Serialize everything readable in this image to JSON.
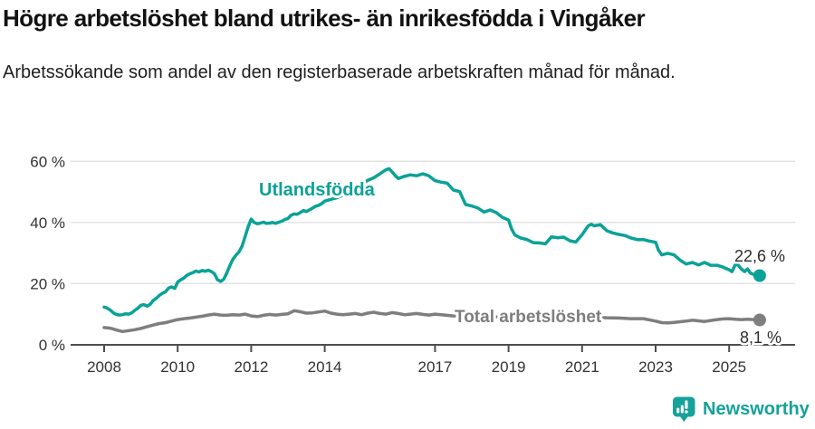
{
  "header": {
    "title": "Högre arbetslöshet bland utrikes- än inrikesfödda i Vingåker",
    "subtitle": "Arbetssökande som andel av den registerbaserade arbetskraften månad för månad."
  },
  "footer": {
    "brand": "Newsworthy"
  },
  "colors": {
    "accent_teal": "#0aa297",
    "line_gray": "#7e7e7e",
    "gridline": "#e3e3e3",
    "axis": "#4d4d4d",
    "text_dark": "#121212"
  },
  "chart_data": {
    "type": "line",
    "title": "Högre arbetslöshet bland utrikes- än inrikesfödda i Vingåker",
    "subtitle": "Arbetssökande som andel av den registerbaserade arbetskraften månad för månad.",
    "xlabel": "",
    "ylabel": "",
    "xlim": [
      2007.1,
      2026.8
    ],
    "ylim": [
      0,
      62
    ],
    "grid": "horizontal",
    "legend_position": "inline-labels",
    "x_ticks": [
      2008,
      2010,
      2012,
      2014,
      2017,
      2019,
      2021,
      2023,
      2025
    ],
    "y_ticks": [
      {
        "value": 60,
        "label": "60 %"
      },
      {
        "value": 40,
        "label": "40 %"
      },
      {
        "value": 20,
        "label": "20 %"
      },
      {
        "value": 0,
        "label": "0 %"
      }
    ],
    "series": [
      {
        "id": "utlandsfodda",
        "name": "Utlandsfödda",
        "color": "#0aa297",
        "end_label": "22,6 %",
        "end_value": 22.6,
        "points": [
          [
            2008.0,
            12.3
          ],
          [
            2008.08,
            12.0
          ],
          [
            2008.17,
            11.3
          ],
          [
            2008.25,
            10.4
          ],
          [
            2008.33,
            9.9
          ],
          [
            2008.42,
            9.7
          ],
          [
            2008.5,
            9.8
          ],
          [
            2008.58,
            10.1
          ],
          [
            2008.67,
            10.0
          ],
          [
            2008.75,
            10.4
          ],
          [
            2008.83,
            11.2
          ],
          [
            2008.92,
            12.0
          ],
          [
            2009.0,
            12.9
          ],
          [
            2009.08,
            13.1
          ],
          [
            2009.17,
            12.6
          ],
          [
            2009.25,
            13.2
          ],
          [
            2009.33,
            14.4
          ],
          [
            2009.42,
            15.2
          ],
          [
            2009.5,
            16.1
          ],
          [
            2009.58,
            16.8
          ],
          [
            2009.67,
            17.3
          ],
          [
            2009.75,
            18.5
          ],
          [
            2009.83,
            18.9
          ],
          [
            2009.92,
            18.4
          ],
          [
            2010.0,
            20.5
          ],
          [
            2010.08,
            21.2
          ],
          [
            2010.17,
            21.8
          ],
          [
            2010.25,
            22.7
          ],
          [
            2010.33,
            23.2
          ],
          [
            2010.42,
            23.6
          ],
          [
            2010.5,
            24.1
          ],
          [
            2010.58,
            23.8
          ],
          [
            2010.67,
            24.3
          ],
          [
            2010.75,
            24.0
          ],
          [
            2010.83,
            24.4
          ],
          [
            2010.92,
            23.9
          ],
          [
            2011.0,
            23.2
          ],
          [
            2011.08,
            21.3
          ],
          [
            2011.17,
            20.7
          ],
          [
            2011.25,
            21.4
          ],
          [
            2011.33,
            23.3
          ],
          [
            2011.42,
            25.9
          ],
          [
            2011.5,
            27.9
          ],
          [
            2011.58,
            29.2
          ],
          [
            2011.67,
            30.4
          ],
          [
            2011.75,
            32.2
          ],
          [
            2011.83,
            35.2
          ],
          [
            2011.92,
            38.7
          ],
          [
            2012.0,
            41.1
          ],
          [
            2012.08,
            40.0
          ],
          [
            2012.17,
            39.6
          ],
          [
            2012.25,
            39.8
          ],
          [
            2012.33,
            40.1
          ],
          [
            2012.42,
            39.7
          ],
          [
            2012.5,
            39.8
          ],
          [
            2012.58,
            40.0
          ],
          [
            2012.67,
            39.7
          ],
          [
            2012.75,
            40.1
          ],
          [
            2012.83,
            40.4
          ],
          [
            2012.92,
            41.0
          ],
          [
            2013.0,
            41.3
          ],
          [
            2013.08,
            42.3
          ],
          [
            2013.17,
            42.8
          ],
          [
            2013.25,
            42.7
          ],
          [
            2013.33,
            43.2
          ],
          [
            2013.42,
            43.9
          ],
          [
            2013.5,
            43.6
          ],
          [
            2013.58,
            44.1
          ],
          [
            2013.67,
            44.7
          ],
          [
            2013.75,
            45.3
          ],
          [
            2013.83,
            45.6
          ],
          [
            2013.92,
            46.2
          ],
          [
            2014.0,
            47.0
          ],
          [
            2014.17,
            47.6
          ],
          [
            2014.33,
            48.1
          ],
          [
            2014.5,
            48.9
          ],
          [
            2014.67,
            49.8
          ],
          [
            2014.83,
            50.9
          ],
          [
            2015.0,
            52.4
          ],
          [
            2015.17,
            53.8
          ],
          [
            2015.33,
            54.6
          ],
          [
            2015.5,
            55.9
          ],
          [
            2015.67,
            57.3
          ],
          [
            2015.75,
            57.6
          ],
          [
            2015.83,
            56.6
          ],
          [
            2015.92,
            55.3
          ],
          [
            2016.0,
            54.4
          ],
          [
            2016.17,
            55.1
          ],
          [
            2016.33,
            55.6
          ],
          [
            2016.5,
            55.3
          ],
          [
            2016.67,
            55.9
          ],
          [
            2016.83,
            55.3
          ],
          [
            2017.0,
            53.7
          ],
          [
            2017.17,
            53.2
          ],
          [
            2017.33,
            52.9
          ],
          [
            2017.5,
            50.6
          ],
          [
            2017.67,
            50.1
          ],
          [
            2017.83,
            45.9
          ],
          [
            2018.0,
            45.4
          ],
          [
            2018.17,
            44.7
          ],
          [
            2018.33,
            43.4
          ],
          [
            2018.5,
            44.1
          ],
          [
            2018.67,
            43.2
          ],
          [
            2018.83,
            41.7
          ],
          [
            2019.0,
            40.8
          ],
          [
            2019.08,
            38.0
          ],
          [
            2019.17,
            35.9
          ],
          [
            2019.33,
            34.9
          ],
          [
            2019.5,
            34.4
          ],
          [
            2019.67,
            33.4
          ],
          [
            2019.83,
            33.3
          ],
          [
            2020.0,
            33.0
          ],
          [
            2020.17,
            35.3
          ],
          [
            2020.33,
            35.0
          ],
          [
            2020.5,
            35.2
          ],
          [
            2020.67,
            34.0
          ],
          [
            2020.83,
            33.6
          ],
          [
            2021.0,
            36.0
          ],
          [
            2021.08,
            37.4
          ],
          [
            2021.17,
            38.9
          ],
          [
            2021.25,
            39.4
          ],
          [
            2021.33,
            38.9
          ],
          [
            2021.5,
            39.3
          ],
          [
            2021.67,
            37.3
          ],
          [
            2021.83,
            36.6
          ],
          [
            2022.0,
            36.1
          ],
          [
            2022.17,
            35.7
          ],
          [
            2022.33,
            34.9
          ],
          [
            2022.5,
            34.4
          ],
          [
            2022.67,
            34.4
          ],
          [
            2022.83,
            33.9
          ],
          [
            2023.0,
            33.5
          ],
          [
            2023.08,
            30.9
          ],
          [
            2023.17,
            29.4
          ],
          [
            2023.33,
            29.9
          ],
          [
            2023.5,
            29.4
          ],
          [
            2023.67,
            27.6
          ],
          [
            2023.83,
            26.4
          ],
          [
            2024.0,
            26.9
          ],
          [
            2024.17,
            26.1
          ],
          [
            2024.33,
            26.9
          ],
          [
            2024.5,
            26.0
          ],
          [
            2024.67,
            26.0
          ],
          [
            2024.83,
            25.4
          ],
          [
            2025.0,
            24.5
          ],
          [
            2025.08,
            23.9
          ],
          [
            2025.17,
            26.3
          ],
          [
            2025.25,
            26.0
          ],
          [
            2025.33,
            24.8
          ],
          [
            2025.42,
            23.9
          ],
          [
            2025.5,
            24.8
          ],
          [
            2025.58,
            23.4
          ],
          [
            2025.67,
            23.0
          ],
          [
            2025.75,
            22.9
          ],
          [
            2025.83,
            22.6
          ]
        ]
      },
      {
        "id": "total",
        "name": "Total arbetslöshet",
        "color": "#7e7e7e",
        "end_label": "8,1 %",
        "end_value": 8.1,
        "points": [
          [
            2008.0,
            5.6
          ],
          [
            2008.17,
            5.4
          ],
          [
            2008.33,
            4.8
          ],
          [
            2008.5,
            4.3
          ],
          [
            2008.67,
            4.6
          ],
          [
            2008.83,
            4.9
          ],
          [
            2009.0,
            5.3
          ],
          [
            2009.17,
            5.9
          ],
          [
            2009.33,
            6.4
          ],
          [
            2009.5,
            6.9
          ],
          [
            2009.67,
            7.2
          ],
          [
            2009.83,
            7.7
          ],
          [
            2010.0,
            8.2
          ],
          [
            2010.17,
            8.5
          ],
          [
            2010.33,
            8.7
          ],
          [
            2010.5,
            9.0
          ],
          [
            2010.67,
            9.3
          ],
          [
            2010.83,
            9.7
          ],
          [
            2011.0,
            10.0
          ],
          [
            2011.17,
            9.7
          ],
          [
            2011.33,
            9.6
          ],
          [
            2011.5,
            9.8
          ],
          [
            2011.67,
            9.7
          ],
          [
            2011.83,
            10.0
          ],
          [
            2012.0,
            9.4
          ],
          [
            2012.17,
            9.2
          ],
          [
            2012.33,
            9.6
          ],
          [
            2012.5,
            9.9
          ],
          [
            2012.67,
            9.7
          ],
          [
            2012.83,
            9.9
          ],
          [
            2013.0,
            10.1
          ],
          [
            2013.17,
            11.1
          ],
          [
            2013.33,
            10.8
          ],
          [
            2013.5,
            10.3
          ],
          [
            2013.67,
            10.4
          ],
          [
            2013.83,
            10.7
          ],
          [
            2014.0,
            11.0
          ],
          [
            2014.17,
            10.3
          ],
          [
            2014.33,
            10.0
          ],
          [
            2014.5,
            9.8
          ],
          [
            2014.67,
            10.0
          ],
          [
            2014.83,
            10.2
          ],
          [
            2015.0,
            9.8
          ],
          [
            2015.17,
            10.3
          ],
          [
            2015.33,
            10.6
          ],
          [
            2015.5,
            10.2
          ],
          [
            2015.67,
            10.0
          ],
          [
            2015.83,
            10.5
          ],
          [
            2016.0,
            10.2
          ],
          [
            2016.17,
            9.8
          ],
          [
            2016.33,
            10.0
          ],
          [
            2016.5,
            10.2
          ],
          [
            2016.67,
            9.9
          ],
          [
            2016.83,
            9.7
          ],
          [
            2017.0,
            10.0
          ],
          [
            2017.17,
            9.8
          ],
          [
            2017.33,
            9.6
          ],
          [
            2017.5,
            9.4
          ],
          [
            2017.67,
            9.5
          ],
          [
            2017.83,
            9.7
          ],
          [
            2018.0,
            9.5
          ],
          [
            2018.33,
            9.3
          ],
          [
            2018.67,
            9.1
          ],
          [
            2019.0,
            8.9
          ],
          [
            2019.33,
            8.7
          ],
          [
            2019.67,
            8.8
          ],
          [
            2020.0,
            9.0
          ],
          [
            2020.33,
            9.6
          ],
          [
            2020.67,
            9.5
          ],
          [
            2021.0,
            9.3
          ],
          [
            2021.33,
            9.0
          ],
          [
            2021.67,
            8.8
          ],
          [
            2022.0,
            8.7
          ],
          [
            2022.33,
            8.5
          ],
          [
            2022.67,
            8.5
          ],
          [
            2023.0,
            7.7
          ],
          [
            2023.17,
            7.2
          ],
          [
            2023.33,
            7.1
          ],
          [
            2023.5,
            7.3
          ],
          [
            2023.67,
            7.5
          ],
          [
            2023.83,
            7.7
          ],
          [
            2024.0,
            8.0
          ],
          [
            2024.17,
            7.8
          ],
          [
            2024.33,
            7.6
          ],
          [
            2024.5,
            7.9
          ],
          [
            2024.67,
            8.2
          ],
          [
            2024.83,
            8.4
          ],
          [
            2025.0,
            8.5
          ],
          [
            2025.17,
            8.3
          ],
          [
            2025.33,
            8.2
          ],
          [
            2025.5,
            8.3
          ],
          [
            2025.67,
            8.2
          ],
          [
            2025.83,
            8.1
          ]
        ]
      }
    ]
  }
}
